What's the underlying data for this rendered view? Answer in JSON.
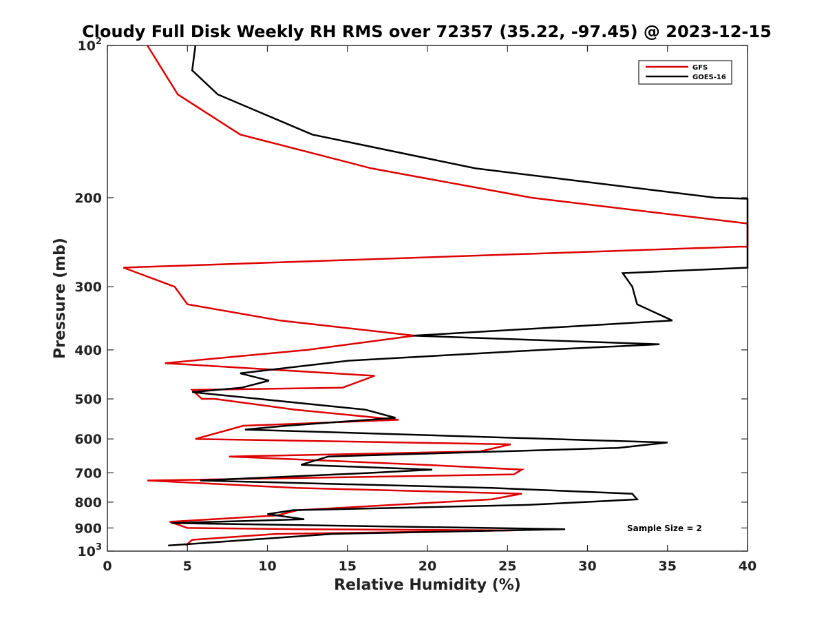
{
  "chart_data": {
    "type": "line",
    "title": "Cloudy Full Disk Weekly RH RMS over 72357 (35.22, -97.45) @ 2023-12-15",
    "xlabel": "Relative Humidity (%)",
    "ylabel": "Pressure (mb)",
    "xlim": [
      0,
      40
    ],
    "ylim": [
      100,
      1000
    ],
    "y_scale": "log",
    "y_reversed": true,
    "x_ticks": [
      "0",
      "5",
      "10",
      "15",
      "20",
      "25",
      "30",
      "35",
      "40"
    ],
    "y_ticks": [
      {
        "value": 100,
        "base": "10",
        "exp": "2"
      },
      {
        "value": 200,
        "label": "200"
      },
      {
        "value": 300,
        "label": "300"
      },
      {
        "value": 400,
        "label": "400"
      },
      {
        "value": 500,
        "label": "500"
      },
      {
        "value": 600,
        "label": "600"
      },
      {
        "value": 700,
        "label": "700"
      },
      {
        "value": 800,
        "label": "800"
      },
      {
        "value": 900,
        "label": "900"
      },
      {
        "value": 1000,
        "base": "10",
        "exp": "3"
      }
    ],
    "legend_position": "top-right",
    "annotation": "Sample Size = 2",
    "series": [
      {
        "name": "GFS",
        "color": "#dd0000",
        "points": [
          [
            2.5,
            100
          ],
          [
            4.4,
            125
          ],
          [
            8.3,
            150
          ],
          [
            16.5,
            175
          ],
          [
            26.5,
            200
          ],
          [
            40,
            225
          ],
          [
            40,
            250
          ],
          [
            39.5,
            250
          ],
          [
            1.0,
            275
          ],
          [
            4.2,
            300
          ],
          [
            5.0,
            325
          ],
          [
            10.8,
            350
          ],
          [
            19.2,
            375
          ],
          [
            12.5,
            400
          ],
          [
            3.6,
            425
          ],
          [
            16.7,
            450
          ],
          [
            14.7,
            475
          ],
          [
            5.3,
            480
          ],
          [
            5.9,
            500
          ],
          [
            6.7,
            500
          ],
          [
            11.7,
            525
          ],
          [
            18.2,
            550
          ],
          [
            8.5,
            565
          ],
          [
            5.5,
            600
          ],
          [
            25.2,
            615
          ],
          [
            23.3,
            635
          ],
          [
            7.6,
            650
          ],
          [
            19.8,
            675
          ],
          [
            25.9,
            690
          ],
          [
            25.4,
            705
          ],
          [
            2.5,
            725
          ],
          [
            11.8,
            750
          ],
          [
            25.9,
            770
          ],
          [
            24.0,
            790
          ],
          [
            11.9,
            830
          ],
          [
            10.6,
            850
          ],
          [
            3.9,
            875
          ],
          [
            5.0,
            900
          ],
          [
            12.0,
            905
          ],
          [
            25.4,
            910
          ],
          [
            10.5,
            925
          ],
          [
            5.3,
            950
          ],
          [
            4.9,
            975
          ]
        ]
      },
      {
        "name": "GOES-16",
        "color": "#000000",
        "points": [
          [
            5.5,
            100
          ],
          [
            5.3,
            112
          ],
          [
            6.9,
            125
          ],
          [
            12.8,
            150
          ],
          [
            23.0,
            175
          ],
          [
            38.0,
            200
          ],
          [
            40,
            201
          ],
          [
            40,
            275
          ],
          [
            32.2,
            282
          ],
          [
            32.8,
            300
          ],
          [
            33.1,
            325
          ],
          [
            35.3,
            350
          ],
          [
            19.1,
            375
          ],
          [
            34.5,
            390
          ],
          [
            27.2,
            400
          ],
          [
            15.1,
            420
          ],
          [
            8.3,
            445
          ],
          [
            10.1,
            460
          ],
          [
            8.4,
            475
          ],
          [
            5.3,
            485
          ],
          [
            16.1,
            525
          ],
          [
            18.0,
            545
          ],
          [
            11.2,
            565
          ],
          [
            8.6,
            575
          ],
          [
            35.0,
            610
          ],
          [
            31.9,
            625
          ],
          [
            13.8,
            650
          ],
          [
            12.1,
            675
          ],
          [
            20.3,
            690
          ],
          [
            16.6,
            700
          ],
          [
            5.8,
            725
          ],
          [
            24.0,
            750
          ],
          [
            32.8,
            770
          ],
          [
            33.1,
            790
          ],
          [
            26.4,
            810
          ],
          [
            11.6,
            830
          ],
          [
            10.0,
            845
          ],
          [
            12.3,
            865
          ],
          [
            4.0,
            880
          ],
          [
            28.6,
            905
          ],
          [
            14.0,
            925
          ],
          [
            3.8,
            975
          ]
        ]
      }
    ]
  }
}
